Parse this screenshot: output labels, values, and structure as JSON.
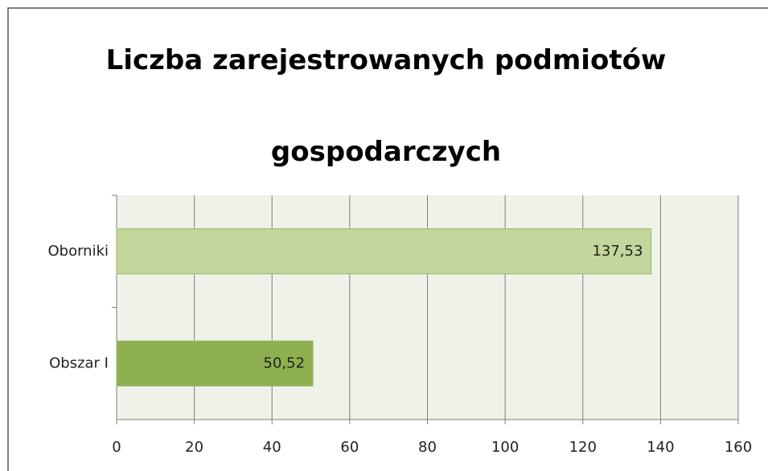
{
  "chart_data": {
    "type": "bar",
    "orientation": "horizontal",
    "title": "Liczba zarejestrowanych podmiotów gospodarczych",
    "categories": [
      "Oborniki",
      "Obszar I"
    ],
    "values": [
      137.53,
      50.52
    ],
    "value_labels": [
      "137,53",
      "50,52"
    ],
    "colors": [
      "#c3d69b",
      "#8eb050"
    ],
    "xlim": [
      0,
      160
    ],
    "xticks": [
      0,
      20,
      40,
      60,
      80,
      100,
      120,
      140,
      160
    ],
    "grid": true
  }
}
